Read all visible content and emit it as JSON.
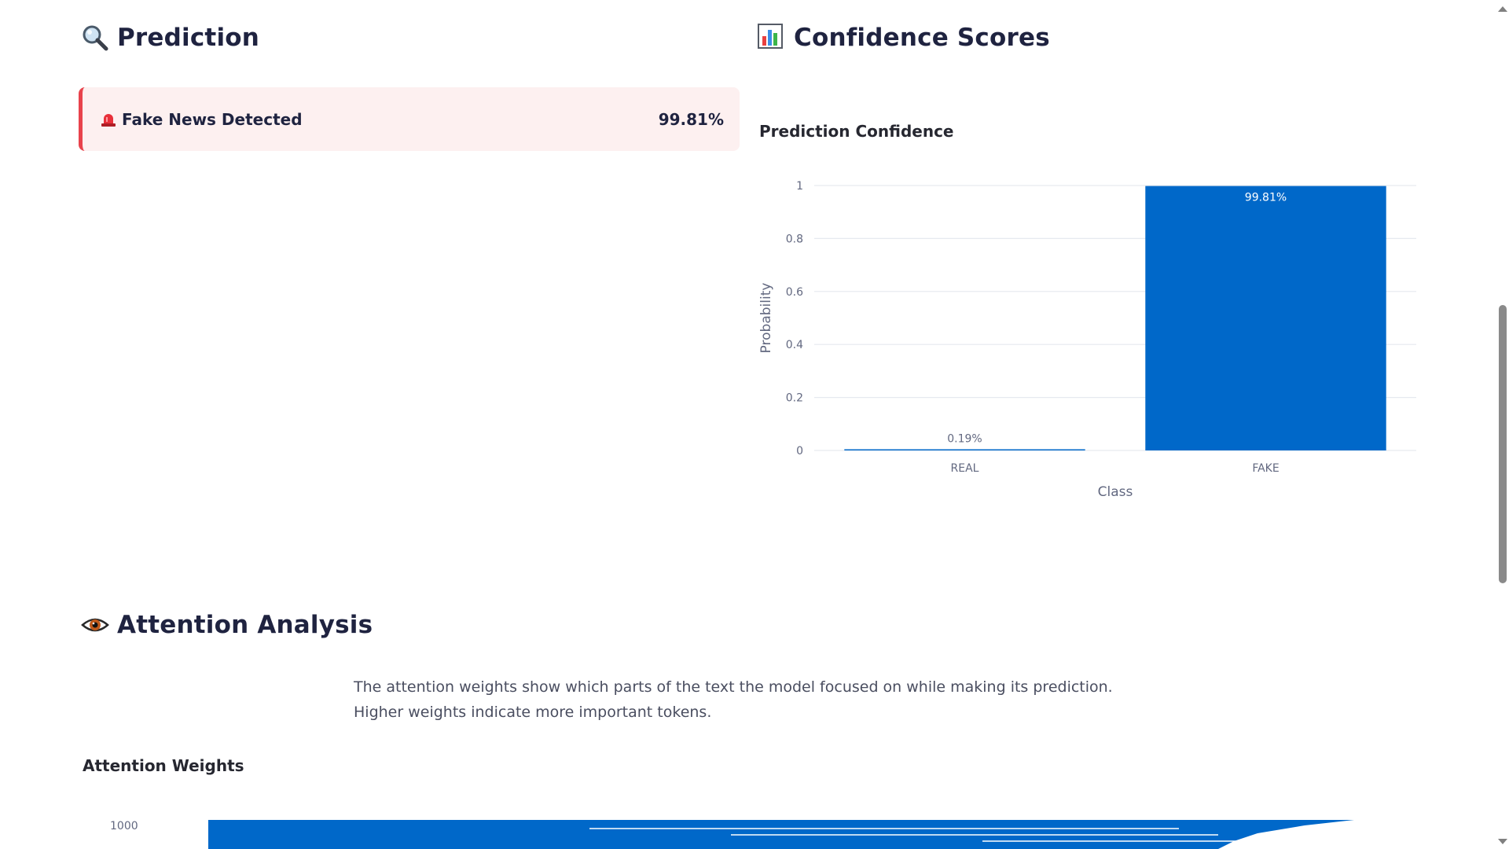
{
  "prediction": {
    "heading": "Prediction",
    "icon": "magnifier-icon",
    "alert": {
      "icon": "siren-icon",
      "label": "Fake News Detected",
      "value": "99.81%",
      "border_color": "#e8434c",
      "background": "#fdf0f0"
    }
  },
  "confidence": {
    "heading": "Confidence Scores",
    "icon": "bar-chart-icon"
  },
  "chart_data": {
    "type": "bar",
    "title": "Prediction Confidence",
    "xlabel": "Class",
    "ylabel": "Probability",
    "categories": [
      "REAL",
      "FAKE"
    ],
    "values": [
      0.0019,
      0.9981
    ],
    "data_labels": [
      "0.19%",
      "99.81%"
    ],
    "ylim": [
      0,
      1
    ],
    "yticks": [
      0,
      0.2,
      0.4,
      0.6,
      0.8,
      1
    ],
    "ytick_labels": [
      "0",
      "0.2",
      "0.4",
      "0.6",
      "0.8",
      "1"
    ],
    "grid": true,
    "bar_color": "#0068c9"
  },
  "attention": {
    "heading": "Attention Analysis",
    "icon": "eye-icon",
    "description_line1": "The attention weights show which parts of the text the model focused on while making its prediction.",
    "description_line2": "Higher weights indicate more important tokens.",
    "weights_title": "Attention Weights",
    "y_tick_visible": "1000"
  }
}
